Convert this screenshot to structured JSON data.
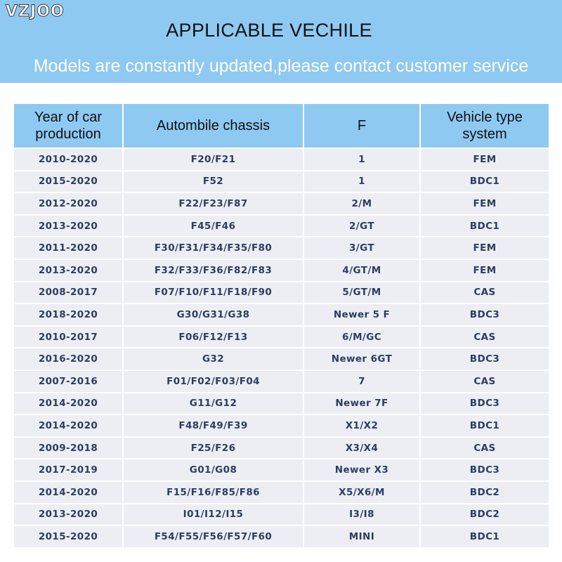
{
  "header": {
    "logo": "VZJOO",
    "title": "APPLICABLE VECHILE",
    "subtitle": "Models are constantly updated,please contact customer service"
  },
  "table": {
    "headers": [
      "Year of car production",
      "Autombile chassis",
      "F",
      "Vehicle type system"
    ],
    "rows": [
      [
        "2010-2020",
        "F20/F21",
        "1",
        "FEM"
      ],
      [
        "2015-2020",
        "F52",
        "1",
        "BDC1"
      ],
      [
        "2012-2020",
        "F22/F23/F87",
        "2/M",
        "FEM"
      ],
      [
        "2013-2020",
        "F45/F46",
        "2/GT",
        "BDC1"
      ],
      [
        "2011-2020",
        "F30/F31/F34/F35/F80",
        "3/GT",
        "FEM"
      ],
      [
        "2013-2020",
        "F32/F33/F36/F82/F83",
        "4/GT/M",
        "FEM"
      ],
      [
        "2008-2017",
        "F07/F10/F11/F18/F90",
        "5/GT/M",
        "CAS"
      ],
      [
        "2018-2020",
        "G30/G31/G38",
        "Newer 5 F",
        "BDC3"
      ],
      [
        "2010-2017",
        "F06/F12/F13",
        "6/M/GC",
        "CAS"
      ],
      [
        "2016-2020",
        "G32",
        "Newer 6GT",
        "BDC3"
      ],
      [
        "2007-2016",
        "F01/F02/F03/F04",
        "7",
        "CAS"
      ],
      [
        "2014-2020",
        "G11/G12",
        "Newer 7F",
        "BDC3"
      ],
      [
        "2014-2020",
        "F48/F49/F39",
        "X1/X2",
        "BDC1"
      ],
      [
        "2009-2018",
        "F25/F26",
        "X3/X4",
        "CAS"
      ],
      [
        "2017-2019",
        "G01/G08",
        "Newer X3",
        "BDC3"
      ],
      [
        "2014-2020",
        "F15/F16/F85/F86",
        "X5/X6/M",
        "BDC2"
      ],
      [
        "2013-2020",
        "I01/I12/I15",
        "I3/I8",
        "BDC2"
      ],
      [
        "2015-2020",
        "F54/F55/F56/F57/F60",
        "MINI",
        "BDC1"
      ]
    ]
  }
}
